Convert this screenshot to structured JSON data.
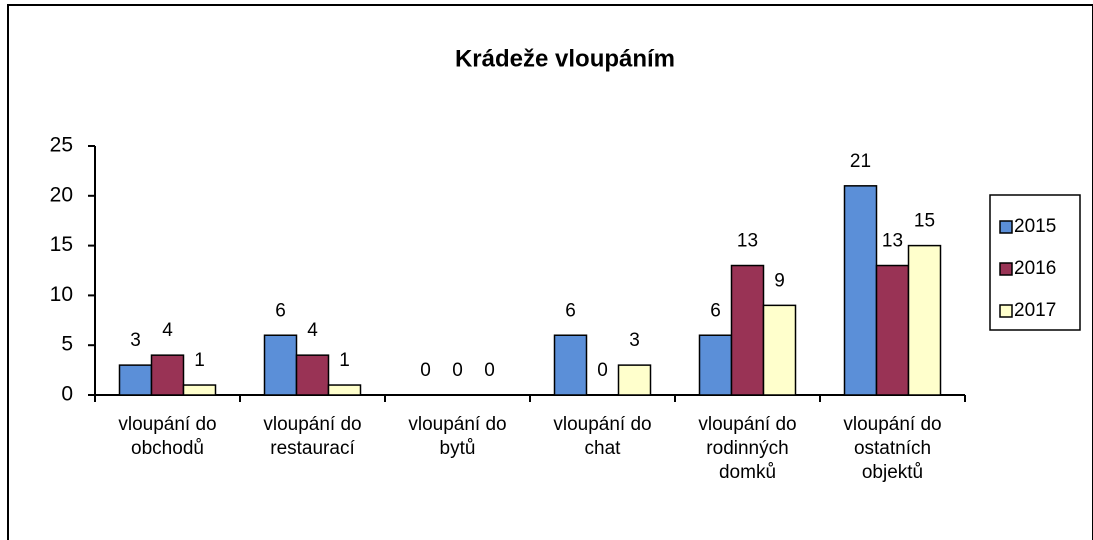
{
  "chart_data": {
    "type": "bar",
    "title": "Krádeže vloupáním",
    "categories": [
      [
        "vloupání do",
        "obchodů"
      ],
      [
        "vloupání do",
        "restaurací"
      ],
      [
        "vloupání do",
        "bytů"
      ],
      [
        "vloupání do",
        "chat"
      ],
      [
        "vloupání do",
        "rodinných",
        "domků"
      ],
      [
        "vloupání do",
        "ostatních",
        "objektů"
      ]
    ],
    "series": [
      {
        "name": "2015",
        "color": "#5b8fd8",
        "values": [
          3,
          6,
          0,
          6,
          6,
          21
        ]
      },
      {
        "name": "2016",
        "color": "#993355",
        "values": [
          4,
          4,
          0,
          0,
          13,
          13
        ]
      },
      {
        "name": "2017",
        "color": "#ffffcc",
        "values": [
          1,
          1,
          0,
          3,
          9,
          15
        ]
      }
    ],
    "ylim": [
      0,
      25
    ],
    "yticks": [
      0,
      5,
      10,
      15,
      20,
      25
    ],
    "grid": false,
    "legend": "right"
  }
}
